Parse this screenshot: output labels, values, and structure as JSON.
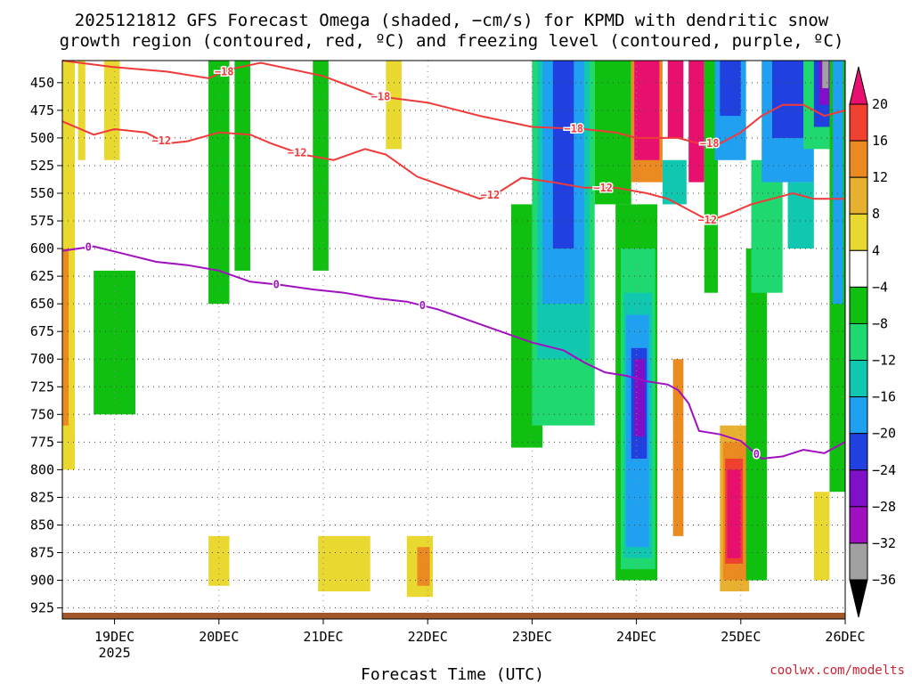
{
  "chart_data": {
    "type": "heatmap",
    "title_line1": "2025121812 GFS Forecast Omega (shaded, −cm/s) for KPMD with dendritic snow",
    "title_line2": "growth region (contoured, red, ºC) and freezing level (contoured, purple, ºC)",
    "xlabel": "Forecast Time (UTC)",
    "credit": "coolwx.com/modelts",
    "x_ticks": [
      {
        "t": 0.5,
        "label": "19DEC",
        "sub": "2025"
      },
      {
        "t": 1.5,
        "label": "20DEC",
        "sub": ""
      },
      {
        "t": 2.5,
        "label": "21DEC",
        "sub": ""
      },
      {
        "t": 3.5,
        "label": "22DEC",
        "sub": ""
      },
      {
        "t": 4.5,
        "label": "23DEC",
        "sub": ""
      },
      {
        "t": 5.5,
        "label": "24DEC",
        "sub": ""
      },
      {
        "t": 6.5,
        "label": "25DEC",
        "sub": ""
      },
      {
        "t": 7.5,
        "label": "26DEC",
        "sub": ""
      }
    ],
    "xlim": [
      0,
      7.5
    ],
    "y_ticks": [
      450,
      475,
      500,
      525,
      550,
      575,
      600,
      625,
      650,
      675,
      700,
      725,
      750,
      775,
      800,
      825,
      850,
      875,
      900,
      925
    ],
    "y_tick_labels": [
      "450",
      "475",
      "500",
      "525",
      "550",
      "575",
      "600",
      "625",
      "650",
      "675",
      "700",
      "725",
      "750",
      "775",
      "800",
      "825",
      "850",
      "875",
      "900",
      "925"
    ],
    "ylim_pressure_hpa": [
      430,
      935
    ],
    "colorbar": {
      "labels": [
        "20",
        "16",
        "12",
        "8",
        "4",
        "−4",
        "−8",
        "−12",
        "−16",
        "−20",
        "−24",
        "−28",
        "−32",
        "−36"
      ],
      "bins": [
        {
          "color": "#e8106e"
        },
        {
          "color": "#f04030"
        },
        {
          "color": "#ea8a20"
        },
        {
          "color": "#e8b030"
        },
        {
          "color": "#e8d830"
        },
        {
          "color": "#ffffff"
        },
        {
          "color": "#10c010"
        },
        {
          "color": "#20d870"
        },
        {
          "color": "#10c8b0"
        },
        {
          "color": "#20a0f0"
        },
        {
          "color": "#2040e0"
        },
        {
          "color": "#8010c8"
        },
        {
          "color": "#a010c0"
        },
        {
          "color": "#a0a0a0"
        }
      ]
    },
    "shaded_regions": [
      {
        "t0": 0.0,
        "t1": 0.12,
        "p0": 430,
        "p1": 800,
        "color": "#e8d830"
      },
      {
        "t0": 0.0,
        "t1": 0.06,
        "p0": 600,
        "p1": 760,
        "color": "#ea8a20"
      },
      {
        "t0": 0.15,
        "t1": 0.22,
        "p0": 430,
        "p1": 520,
        "color": "#e8d830"
      },
      {
        "t0": 0.4,
        "t1": 0.55,
        "p0": 430,
        "p1": 520,
        "color": "#e8d830"
      },
      {
        "t0": 0.3,
        "t1": 0.7,
        "p0": 620,
        "p1": 750,
        "color": "#10c010"
      },
      {
        "t0": 1.4,
        "t1": 1.6,
        "p0": 430,
        "p1": 650,
        "color": "#10c010"
      },
      {
        "t0": 1.4,
        "t1": 1.6,
        "p0": 860,
        "p1": 905,
        "color": "#e8d830"
      },
      {
        "t0": 1.65,
        "t1": 1.8,
        "p0": 430,
        "p1": 620,
        "color": "#10c010"
      },
      {
        "t0": 2.4,
        "t1": 2.55,
        "p0": 430,
        "p1": 620,
        "color": "#10c010"
      },
      {
        "t0": 2.45,
        "t1": 2.95,
        "p0": 860,
        "p1": 910,
        "color": "#e8d830"
      },
      {
        "t0": 3.1,
        "t1": 3.25,
        "p0": 430,
        "p1": 510,
        "color": "#e8d830"
      },
      {
        "t0": 3.3,
        "t1": 3.55,
        "p0": 860,
        "p1": 915,
        "color": "#e8d830"
      },
      {
        "t0": 3.4,
        "t1": 3.52,
        "p0": 870,
        "p1": 905,
        "color": "#ea8a20"
      },
      {
        "t0": 4.3,
        "t1": 4.6,
        "p0": 560,
        "p1": 780,
        "color": "#10c010"
      },
      {
        "t0": 4.5,
        "t1": 5.1,
        "p0": 430,
        "p1": 760,
        "color": "#20d870"
      },
      {
        "t0": 4.55,
        "t1": 5.05,
        "p0": 430,
        "p1": 700,
        "color": "#10c8b0"
      },
      {
        "t0": 4.6,
        "t1": 5.0,
        "p0": 430,
        "p1": 650,
        "color": "#20a0f0"
      },
      {
        "t0": 4.7,
        "t1": 4.9,
        "p0": 430,
        "p1": 600,
        "color": "#2040e0"
      },
      {
        "t0": 5.1,
        "t1": 5.45,
        "p0": 430,
        "p1": 560,
        "color": "#10c010"
      },
      {
        "t0": 5.3,
        "t1": 5.7,
        "p0": 560,
        "p1": 900,
        "color": "#10c010"
      },
      {
        "t0": 5.35,
        "t1": 5.68,
        "p0": 600,
        "p1": 890,
        "color": "#20d870"
      },
      {
        "t0": 5.38,
        "t1": 5.65,
        "p0": 640,
        "p1": 880,
        "color": "#10c8b0"
      },
      {
        "t0": 5.4,
        "t1": 5.62,
        "p0": 660,
        "p1": 870,
        "color": "#20a0f0"
      },
      {
        "t0": 5.45,
        "t1": 5.6,
        "p0": 690,
        "p1": 790,
        "color": "#2040e0"
      },
      {
        "t0": 5.48,
        "t1": 5.58,
        "p0": 700,
        "p1": 770,
        "color": "#8010c8"
      },
      {
        "t0": 5.45,
        "t1": 5.75,
        "p0": 430,
        "p1": 540,
        "color": "#ea8a20"
      },
      {
        "t0": 5.48,
        "t1": 5.72,
        "p0": 430,
        "p1": 520,
        "color": "#e8106e"
      },
      {
        "t0": 5.8,
        "t1": 5.95,
        "p0": 430,
        "p1": 500,
        "color": "#e8106e"
      },
      {
        "t0": 5.75,
        "t1": 5.98,
        "p0": 520,
        "p1": 560,
        "color": "#10c8b0"
      },
      {
        "t0": 5.85,
        "t1": 5.95,
        "p0": 700,
        "p1": 860,
        "color": "#ea8a20"
      },
      {
        "t0": 6.0,
        "t1": 6.15,
        "p0": 430,
        "p1": 540,
        "color": "#e8106e"
      },
      {
        "t0": 6.15,
        "t1": 6.28,
        "p0": 430,
        "p1": 640,
        "color": "#10c010"
      },
      {
        "t0": 6.25,
        "t1": 6.55,
        "p0": 430,
        "p1": 520,
        "color": "#20a0f0"
      },
      {
        "t0": 6.3,
        "t1": 6.5,
        "p0": 430,
        "p1": 480,
        "color": "#2040e0"
      },
      {
        "t0": 6.3,
        "t1": 6.58,
        "p0": 760,
        "p1": 910,
        "color": "#e8b030"
      },
      {
        "t0": 6.33,
        "t1": 6.55,
        "p0": 775,
        "p1": 900,
        "color": "#ea8a20"
      },
      {
        "t0": 6.35,
        "t1": 6.52,
        "p0": 790,
        "p1": 885,
        "color": "#f04030"
      },
      {
        "t0": 6.37,
        "t1": 6.5,
        "p0": 800,
        "p1": 880,
        "color": "#e8106e"
      },
      {
        "t0": 6.55,
        "t1": 6.75,
        "p0": 600,
        "p1": 900,
        "color": "#10c010"
      },
      {
        "t0": 6.6,
        "t1": 6.9,
        "p0": 520,
        "p1": 640,
        "color": "#20d870"
      },
      {
        "t0": 6.7,
        "t1": 7.2,
        "p0": 430,
        "p1": 540,
        "color": "#20a0f0"
      },
      {
        "t0": 6.8,
        "t1": 7.1,
        "p0": 430,
        "p1": 500,
        "color": "#2040e0"
      },
      {
        "t0": 6.95,
        "t1": 7.2,
        "p0": 540,
        "p1": 600,
        "color": "#10c8b0"
      },
      {
        "t0": 7.1,
        "t1": 7.35,
        "p0": 430,
        "p1": 510,
        "color": "#20d870"
      },
      {
        "t0": 7.2,
        "t1": 7.38,
        "p0": 430,
        "p1": 490,
        "color": "#2040e0"
      },
      {
        "t0": 7.25,
        "t1": 7.35,
        "p0": 430,
        "p1": 470,
        "color": "#8010c8"
      },
      {
        "t0": 7.28,
        "t1": 7.34,
        "p0": 430,
        "p1": 455,
        "color": "#a0a0a0"
      },
      {
        "t0": 7.35,
        "t1": 7.5,
        "p0": 430,
        "p1": 820,
        "color": "#10c010"
      },
      {
        "t0": 7.38,
        "t1": 7.48,
        "p0": 430,
        "p1": 650,
        "color": "#20a0f0"
      },
      {
        "t0": 7.2,
        "t1": 7.35,
        "p0": 820,
        "p1": 900,
        "color": "#e8d830"
      }
    ],
    "contours": [
      {
        "name": "minus18",
        "label": "−18",
        "color": "#f03a3a",
        "label_pos": [
          [
            1.55,
            -18
          ],
          [
            3.05,
            -18
          ],
          [
            4.9,
            -18
          ],
          [
            6.2,
            -18
          ]
        ],
        "points": [
          [
            0,
            430
          ],
          [
            0.5,
            436
          ],
          [
            1.0,
            440
          ],
          [
            1.4,
            446
          ],
          [
            1.6,
            438
          ],
          [
            1.9,
            432
          ],
          [
            2.5,
            444
          ],
          [
            3.0,
            462
          ],
          [
            3.5,
            468
          ],
          [
            4.0,
            480
          ],
          [
            4.5,
            490
          ],
          [
            5.0,
            492
          ],
          [
            5.3,
            495
          ],
          [
            5.5,
            500
          ],
          [
            5.9,
            500
          ],
          [
            6.1,
            505
          ],
          [
            6.3,
            505
          ],
          [
            6.5,
            495
          ],
          [
            6.7,
            480
          ],
          [
            6.9,
            470
          ],
          [
            7.1,
            470
          ],
          [
            7.3,
            480
          ],
          [
            7.5,
            475
          ]
        ]
      },
      {
        "name": "minus12",
        "label": "−12",
        "color": "#f03a3a",
        "label_pos": [
          [
            0.95,
            -12
          ],
          [
            2.25,
            -12
          ],
          [
            4.1,
            -12
          ],
          [
            5.18,
            -12
          ],
          [
            6.18,
            -12
          ]
        ],
        "points": [
          [
            0,
            485
          ],
          [
            0.3,
            497
          ],
          [
            0.5,
            492
          ],
          [
            0.8,
            495
          ],
          [
            1.0,
            505
          ],
          [
            1.2,
            503
          ],
          [
            1.5,
            495
          ],
          [
            1.8,
            497
          ],
          [
            2.0,
            505
          ],
          [
            2.3,
            515
          ],
          [
            2.6,
            520
          ],
          [
            2.9,
            510
          ],
          [
            3.1,
            515
          ],
          [
            3.4,
            535
          ],
          [
            3.7,
            545
          ],
          [
            4.0,
            555
          ],
          [
            4.2,
            548
          ],
          [
            4.4,
            536
          ],
          [
            4.7,
            540
          ],
          [
            5.0,
            545
          ],
          [
            5.3,
            545
          ],
          [
            5.6,
            550
          ],
          [
            5.8,
            555
          ],
          [
            6.0,
            565
          ],
          [
            6.2,
            575
          ],
          [
            6.4,
            568
          ],
          [
            6.6,
            560
          ],
          [
            6.8,
            555
          ],
          [
            7.0,
            550
          ],
          [
            7.2,
            555
          ],
          [
            7.5,
            555
          ]
        ]
      },
      {
        "name": "freezing",
        "label": "0",
        "color": "#a010c0",
        "label_pos": [
          [
            0.25,
            0
          ],
          [
            2.05,
            0
          ],
          [
            3.45,
            0
          ],
          [
            6.65,
            0
          ]
        ],
        "points": [
          [
            0,
            602
          ],
          [
            0.15,
            600
          ],
          [
            0.3,
            598
          ],
          [
            0.6,
            605
          ],
          [
            0.9,
            612
          ],
          [
            1.2,
            615
          ],
          [
            1.5,
            620
          ],
          [
            1.8,
            630
          ],
          [
            2.1,
            633
          ],
          [
            2.4,
            637
          ],
          [
            2.7,
            640
          ],
          [
            3.0,
            645
          ],
          [
            3.3,
            648
          ],
          [
            3.6,
            655
          ],
          [
            3.9,
            665
          ],
          [
            4.2,
            675
          ],
          [
            4.5,
            685
          ],
          [
            4.8,
            692
          ],
          [
            5.0,
            703
          ],
          [
            5.2,
            712
          ],
          [
            5.4,
            715
          ],
          [
            5.6,
            720
          ],
          [
            5.8,
            723
          ],
          [
            5.9,
            728
          ],
          [
            6.0,
            740
          ],
          [
            6.1,
            765
          ],
          [
            6.3,
            768
          ],
          [
            6.5,
            774
          ],
          [
            6.7,
            790
          ],
          [
            6.9,
            788
          ],
          [
            7.1,
            782
          ],
          [
            7.3,
            785
          ],
          [
            7.5,
            775
          ]
        ]
      }
    ]
  }
}
